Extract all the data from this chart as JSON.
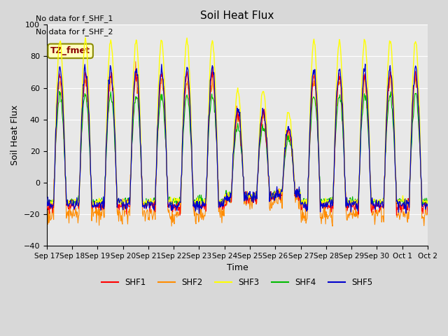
{
  "title": "Soil Heat Flux",
  "ylabel": "Soil Heat Flux",
  "xlabel": "Time",
  "annotation_lines": [
    "No data for f_SHF_1",
    "No data for f_SHF_2"
  ],
  "box_label": "TZ_fmet",
  "ylim": [
    -40,
    100
  ],
  "xlim": [
    0,
    360
  ],
  "xtick_labels": [
    "Sep 17",
    "Sep 18",
    "Sep 19",
    "Sep 20",
    "Sep 21",
    "Sep 22",
    "Sep 23",
    "Sep 24",
    "Sep 25",
    "Sep 26",
    "Sep 27",
    "Sep 28",
    "Sep 29",
    "Sep 30",
    "Oct 1",
    "Oct 2"
  ],
  "legend_entries": [
    "SHF1",
    "SHF2",
    "SHF3",
    "SHF4",
    "SHF5"
  ],
  "legend_colors": [
    "#ff0000",
    "#ff8c00",
    "#ffff00",
    "#00bb00",
    "#0000cc"
  ],
  "line_colors": [
    "#ff0000",
    "#ff8c00",
    "#ffff00",
    "#00bb00",
    "#0000cc"
  ],
  "background_color": "#e8e8e8",
  "plot_bg_color": "#f0f0f0",
  "n_days": 16,
  "hours_per_day": 24,
  "dt": 0.5
}
